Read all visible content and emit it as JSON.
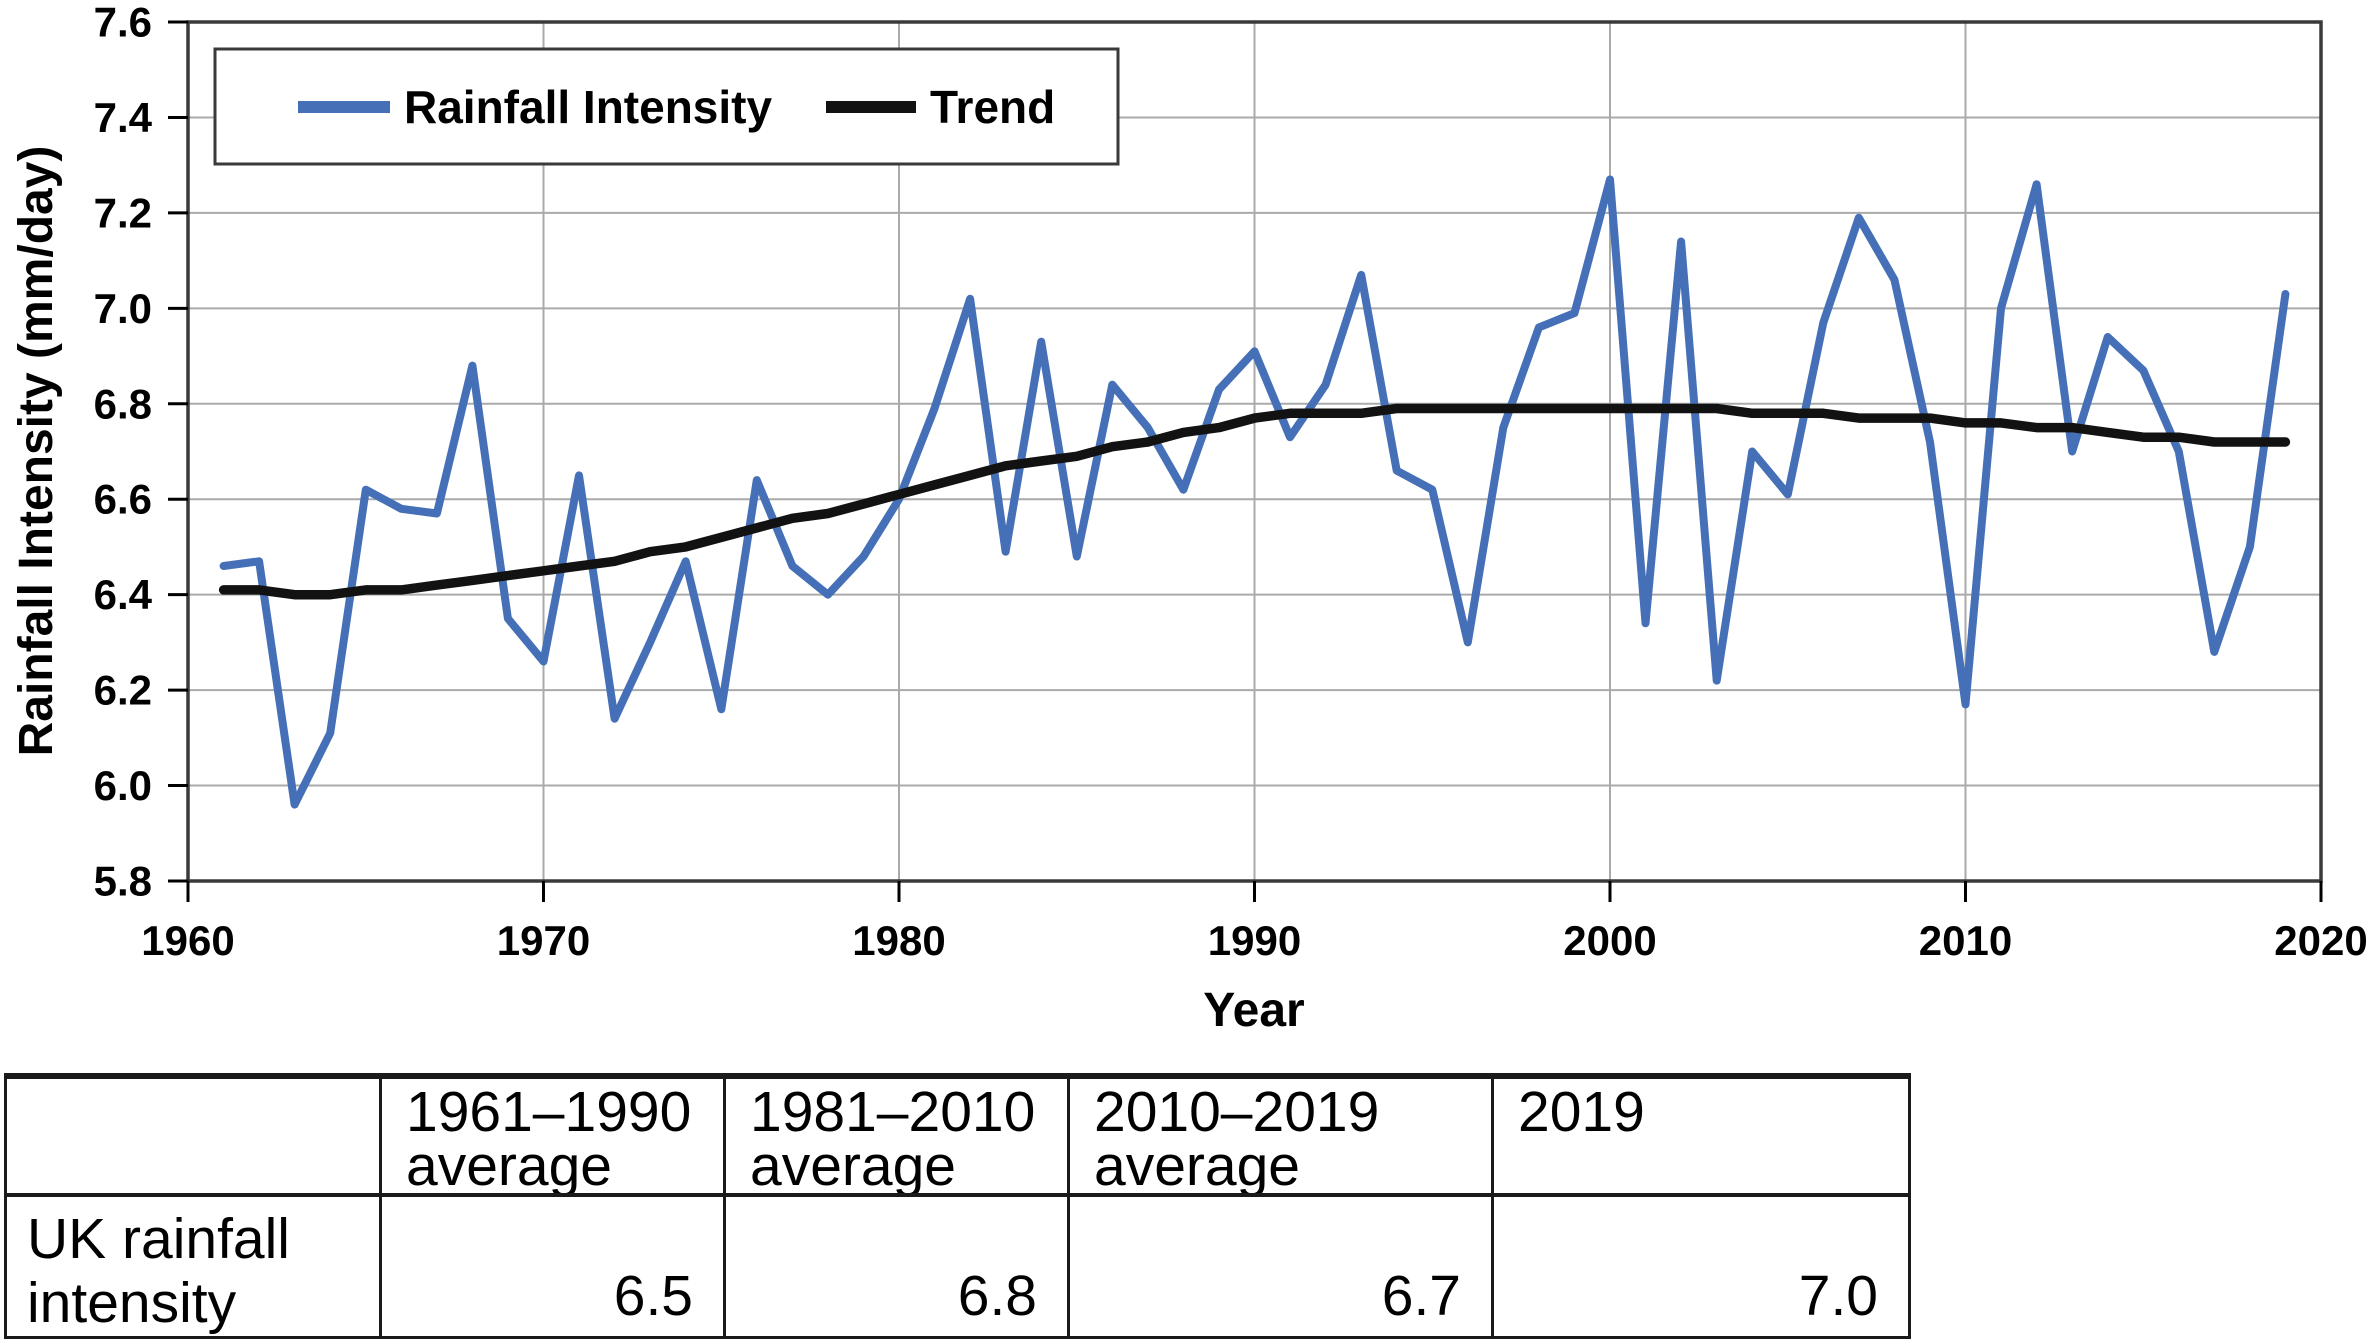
{
  "chart_data": {
    "type": "line",
    "title": "",
    "xlabel": "Year",
    "ylabel": "Rainfall Intensity (mm/day)",
    "xlim": [
      1960,
      2020
    ],
    "ylim": [
      5.8,
      7.6
    ],
    "x_ticks": [
      1960,
      1970,
      1980,
      1990,
      2000,
      2010,
      2020
    ],
    "y_ticks": [
      5.8,
      6.0,
      6.2,
      6.4,
      6.6,
      6.8,
      7.0,
      7.2,
      7.4,
      7.6
    ],
    "grid": true,
    "legend_position": "top-left-inside",
    "x": [
      1961,
      1962,
      1963,
      1964,
      1965,
      1966,
      1967,
      1968,
      1969,
      1970,
      1971,
      1972,
      1973,
      1974,
      1975,
      1976,
      1977,
      1978,
      1979,
      1980,
      1981,
      1982,
      1983,
      1984,
      1985,
      1986,
      1987,
      1988,
      1989,
      1990,
      1991,
      1992,
      1993,
      1994,
      1995,
      1996,
      1997,
      1998,
      1999,
      2000,
      2001,
      2002,
      2003,
      2004,
      2005,
      2006,
      2007,
      2008,
      2009,
      2010,
      2011,
      2012,
      2013,
      2014,
      2015,
      2016,
      2017,
      2018,
      2019
    ],
    "series": [
      {
        "name": "Rainfall Intensity",
        "color": "#4570b8",
        "line_width": 8,
        "values": [
          6.46,
          6.47,
          5.96,
          6.11,
          6.62,
          6.58,
          6.57,
          6.88,
          6.35,
          6.26,
          6.65,
          6.14,
          6.3,
          6.47,
          6.16,
          6.64,
          6.46,
          6.4,
          6.48,
          6.6,
          6.79,
          7.02,
          6.49,
          6.93,
          6.48,
          6.84,
          6.75,
          6.62,
          6.83,
          6.91,
          6.73,
          6.84,
          7.07,
          6.66,
          6.62,
          6.3,
          6.75,
          6.96,
          6.99,
          7.27,
          6.34,
          7.14,
          6.22,
          6.7,
          6.61,
          6.97,
          7.19,
          7.06,
          6.72,
          6.17,
          7.0,
          7.26,
          6.7,
          6.94,
          6.87,
          6.7,
          6.28,
          6.5,
          7.03
        ]
      },
      {
        "name": "Trend",
        "color": "#121212",
        "line_width": 9.5,
        "values": [
          6.41,
          6.41,
          6.4,
          6.4,
          6.41,
          6.41,
          6.42,
          6.43,
          6.44,
          6.45,
          6.46,
          6.47,
          6.49,
          6.5,
          6.52,
          6.54,
          6.56,
          6.57,
          6.59,
          6.61,
          6.63,
          6.65,
          6.67,
          6.68,
          6.69,
          6.71,
          6.72,
          6.74,
          6.75,
          6.77,
          6.78,
          6.78,
          6.78,
          6.79,
          6.79,
          6.79,
          6.79,
          6.79,
          6.79,
          6.79,
          6.79,
          6.79,
          6.79,
          6.78,
          6.78,
          6.78,
          6.77,
          6.77,
          6.77,
          6.76,
          6.76,
          6.75,
          6.75,
          6.74,
          6.73,
          6.73,
          6.72,
          6.72,
          6.72
        ]
      }
    ]
  },
  "table": {
    "headers": [
      {
        "line1": "",
        "line2": ""
      },
      {
        "line1": "1961–1990",
        "line2": "average"
      },
      {
        "line1": "1981–2010",
        "line2": "average"
      },
      {
        "line1": "2010–2019",
        "line2": "average"
      },
      {
        "line1": "2019",
        "line2": ""
      }
    ],
    "rows": [
      {
        "label_line1": "UK rainfall",
        "label_line2": "intensity",
        "values": [
          "6.5",
          "6.8",
          "6.7",
          "7.0"
        ]
      }
    ]
  },
  "colors": {
    "background": "#ffffff",
    "gridline": "#aaaaaa",
    "plot_border": "#3a3a3a",
    "tick": "#000000",
    "rainfall_line": "#4570b8",
    "trend_line": "#121212",
    "text": "#000000",
    "table_border": "#1a1a1a"
  }
}
